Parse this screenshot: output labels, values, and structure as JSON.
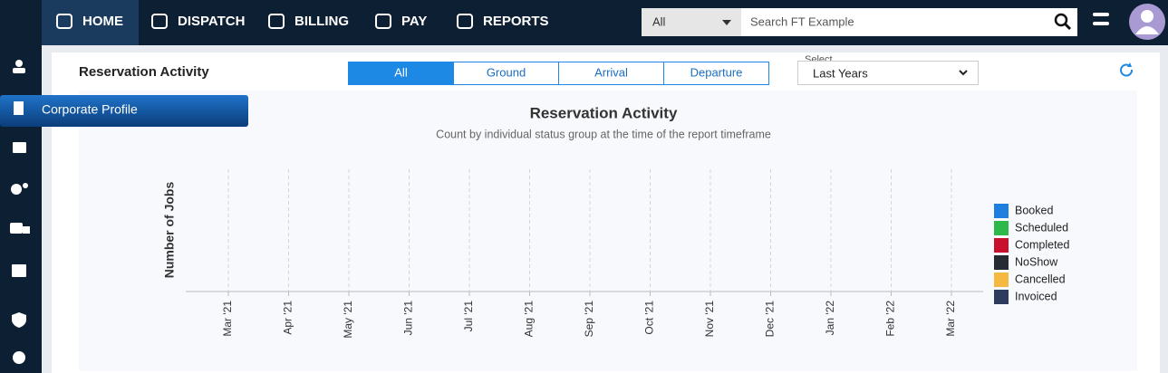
{
  "nav": {
    "items": [
      "HOME",
      "DISPATCH",
      "BILLING",
      "PAY",
      "REPORTS"
    ]
  },
  "search": {
    "scope": "All",
    "placeholder": "Search FT Example"
  },
  "sidebar": {
    "tooltip": "Corporate Profile"
  },
  "card": {
    "title": "Reservation Activity",
    "tabs": [
      "All",
      "Ground",
      "Arrival",
      "Departure"
    ],
    "select_label": "Select",
    "select_value": "Last Years"
  },
  "chart": {
    "title": "Reservation Activity",
    "subtitle": "Count by individual status group at the time of the report timeframe",
    "y_label": "Number of Jobs",
    "categories": [
      "Mar '21",
      "Apr '21",
      "May '21",
      "Jun '21",
      "Jul '21",
      "Aug '21",
      "Sep '21",
      "Oct '21",
      "Nov '21",
      "Dec '21",
      "Jan '22",
      "Feb '22",
      "Mar '22"
    ],
    "legend": [
      {
        "name": "Booked",
        "color": "#1e7fe0"
      },
      {
        "name": "Scheduled",
        "color": "#2db84a"
      },
      {
        "name": "Completed",
        "color": "#c8102e"
      },
      {
        "name": "NoShow",
        "color": "#262a33"
      },
      {
        "name": "Cancelled",
        "color": "#f5b942"
      },
      {
        "name": "Invoiced",
        "color": "#2f3b5c"
      }
    ]
  }
}
